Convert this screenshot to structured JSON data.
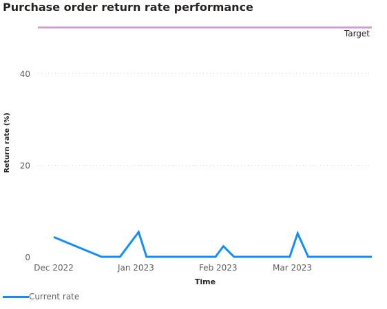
{
  "chart_data": {
    "type": "line",
    "title": "Purchase order return rate performance",
    "xlabel": "Time",
    "ylabel": "Return rate (%)",
    "ylim": [
      0,
      50
    ],
    "yticks": [
      0,
      20,
      40
    ],
    "xticks": [
      "Dec 2022",
      "Jan 2023",
      "Feb 2023",
      "Mar 2023"
    ],
    "x_tick_dates": [
      "2022-12-01",
      "2023-01-01",
      "2023-02-01",
      "2023-03-01"
    ],
    "xlim": [
      "2022-11-25",
      "2023-03-31"
    ],
    "grid": true,
    "legend_position": "bottom-left",
    "series": [
      {
        "name": "Current rate",
        "color": "#118DFF",
        "x": [
          "2022-12-01",
          "2022-12-19",
          "2022-12-26",
          "2023-01-02",
          "2023-01-05",
          "2023-01-31",
          "2023-02-03",
          "2023-02-07",
          "2023-02-28",
          "2023-03-03",
          "2023-03-07",
          "2023-03-31"
        ],
        "y": [
          4.3,
          0,
          0,
          5.4,
          0,
          0,
          2.3,
          0,
          0,
          5.1,
          0,
          0
        ]
      }
    ],
    "reference_lines": [
      {
        "label": "Target",
        "y": 50,
        "color": "#C8A2C8"
      }
    ]
  }
}
